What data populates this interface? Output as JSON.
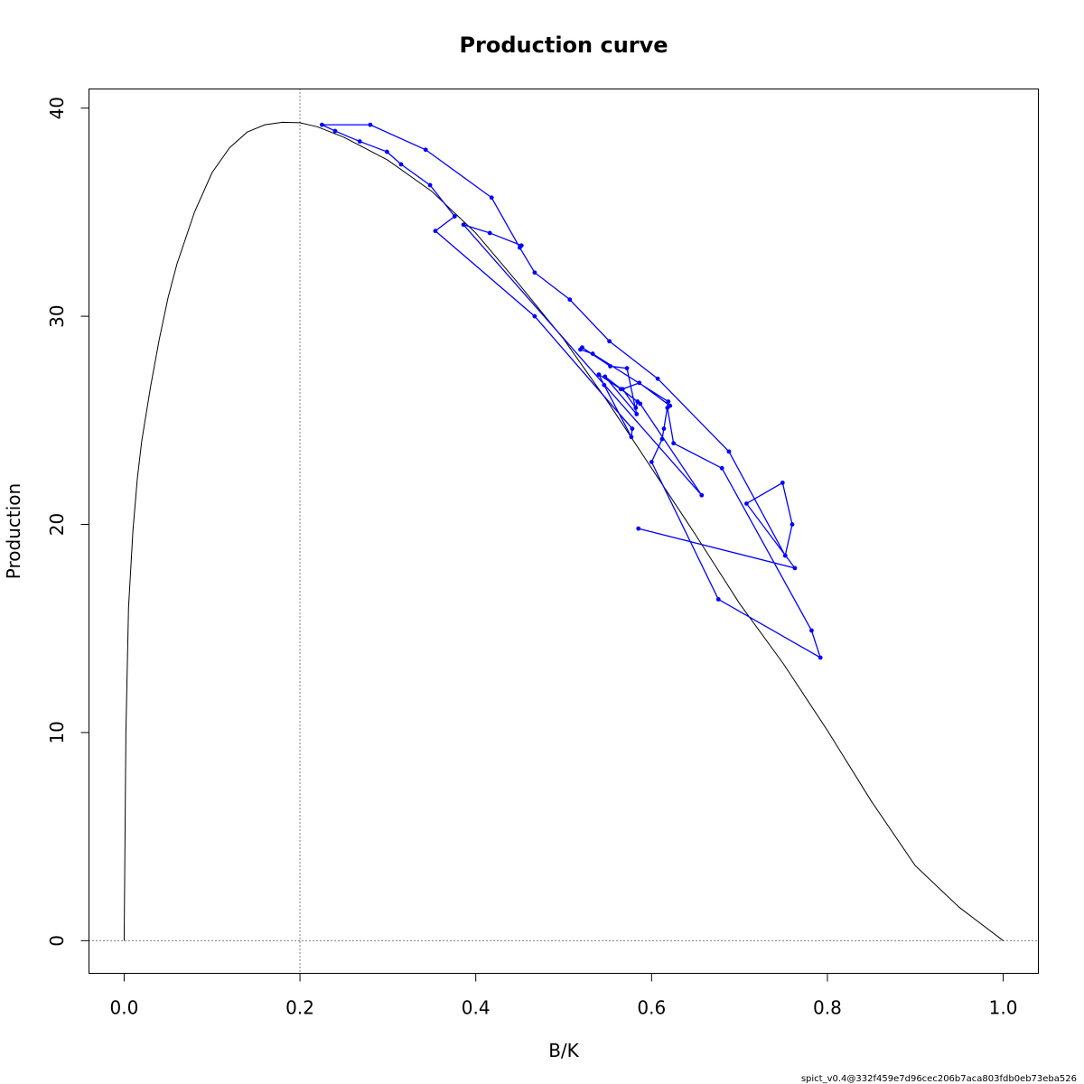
{
  "chart_data": {
    "type": "line",
    "title": "Production curve",
    "xlabel": "B/K",
    "ylabel": "Production",
    "xlim": [
      -0.04,
      1.04
    ],
    "ylim": [
      -1.57,
      40.92
    ],
    "x_ticks": [
      0.0,
      0.2,
      0.4,
      0.6,
      0.8,
      1.0
    ],
    "x_tick_labels": [
      "0.0",
      "0.2",
      "0.4",
      "0.6",
      "0.8",
      "1.0"
    ],
    "y_ticks": [
      0,
      10,
      20,
      30,
      40
    ],
    "y_tick_labels": [
      "0",
      "10",
      "20",
      "30",
      "40"
    ],
    "reference_lines": {
      "vertical_x": 0.2,
      "horizontal_y": 0
    },
    "colors": {
      "curve": "#000000",
      "trajectory": "#0000ff",
      "reference": "#000000"
    },
    "series": [
      {
        "kind": "production-curve",
        "x": [
          0,
          0.002,
          0.005,
          0.01,
          0.015,
          0.02,
          0.03,
          0.04,
          0.05,
          0.06,
          0.08,
          0.1,
          0.12,
          0.14,
          0.16,
          0.18,
          0.2,
          0.22,
          0.25,
          0.3,
          0.35,
          0.4,
          0.45,
          0.5,
          0.55,
          0.6,
          0.65,
          0.7,
          0.75,
          0.8,
          0.85,
          0.9,
          0.95,
          1.0
        ],
        "y": [
          0,
          10,
          16,
          19.7,
          22.2,
          24,
          26.6,
          28.9,
          30.9,
          32.5,
          35,
          36.9,
          38.1,
          38.85,
          39.2,
          39.32,
          39.3,
          39.1,
          38.6,
          37.5,
          36.0,
          34.0,
          31.5,
          28.9,
          25.9,
          22.7,
          19.5,
          16.2,
          13.3,
          10.1,
          6.7,
          3.6,
          1.6,
          0
        ]
      },
      {
        "kind": "biomass-trajectory",
        "x": [
          0.585,
          0.763,
          0.708,
          0.749,
          0.76,
          0.752,
          0.688,
          0.607,
          0.552,
          0.507,
          0.467,
          0.45,
          0.418,
          0.343,
          0.28,
          0.225,
          0.24,
          0.268,
          0.299,
          0.315,
          0.348,
          0.376,
          0.354,
          0.467,
          0.578,
          0.577,
          0.546,
          0.54,
          0.565,
          0.584,
          0.582,
          0.567,
          0.586,
          0.621,
          0.618,
          0.625,
          0.68,
          0.782,
          0.792,
          0.676,
          0.6,
          0.612,
          0.614,
          0.619,
          0.533,
          0.519,
          0.521,
          0.553,
          0.572,
          0.583,
          0.547,
          0.587,
          0.657,
          0.386,
          0.416,
          0.452
        ],
        "y": [
          19.8,
          17.9,
          21.0,
          22.0,
          20.0,
          18.5,
          23.5,
          27.0,
          28.8,
          30.8,
          32.1,
          33.3,
          35.7,
          38.0,
          39.2,
          39.2,
          38.9,
          38.4,
          37.9,
          37.3,
          36.3,
          34.8,
          34.1,
          30.0,
          24.6,
          24.2,
          26.7,
          27.2,
          26.5,
          25.9,
          25.6,
          26.5,
          26.8,
          25.7,
          25.6,
          23.9,
          22.7,
          14.9,
          13.6,
          16.4,
          23.0,
          24.1,
          24.6,
          25.9,
          28.2,
          28.4,
          28.5,
          27.6,
          27.5,
          25.3,
          27.1,
          25.8,
          21.4,
          34.4,
          34.0,
          33.4
        ]
      }
    ]
  },
  "footer": {
    "version_text": "spict_v0.4@332f459e7d96cec206b7aca803fdb0eb73eba526"
  }
}
